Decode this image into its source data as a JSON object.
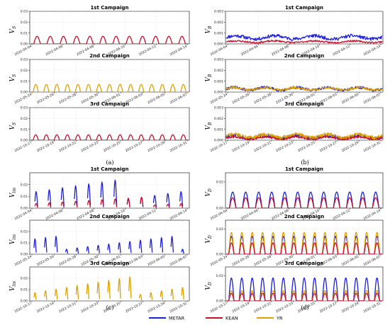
{
  "legend": [
    {
      "name": "METAR",
      "color": "#1f1fd6"
    },
    {
      "name": "KEAN",
      "color": "#c8102e"
    },
    {
      "name": "YR",
      "color": "#e0a100"
    }
  ],
  "subfigure_labels": [
    "(a)",
    "(b)",
    "(c)",
    "(d)"
  ],
  "chart_data": [
    {
      "group": "(a)",
      "type": "line",
      "title": "1st Campaign",
      "ylabel": "V_S",
      "ylim": [
        0,
        0.03
      ],
      "yticks": [
        "0.00",
        "0.01",
        "0.02",
        "0.03"
      ],
      "xticks": [
        "2022-04-04",
        "2022-04-06",
        "2022-04-08",
        "2022-04-10",
        "2022-04-12",
        "2022-04-14"
      ],
      "series": [
        {
          "name": "KEAN",
          "pattern": "diurnal",
          "days": 12,
          "peak": 0.007
        }
      ]
    },
    {
      "group": "(a)",
      "type": "line",
      "title": "2nd Campaign",
      "ylabel": "V_S",
      "ylim": [
        0,
        0.03
      ],
      "yticks": [
        "0.00",
        "0.01",
        "0.02",
        "0.03"
      ],
      "xticks": [
        "2022-05-24",
        "2022-05-26",
        "2022-05-28",
        "2022-05-30",
        "2022-06-01",
        "2022-06-03",
        "2022-06-05",
        "2022-06-07"
      ],
      "series": [
        {
          "name": "YR",
          "pattern": "diurnal",
          "days": 15,
          "peak": 0.007
        }
      ]
    },
    {
      "group": "(a)",
      "type": "line",
      "title": "3rd Campaign",
      "ylabel": "V_S",
      "ylim": [
        0,
        0.03
      ],
      "yticks": [
        "0.00",
        "0.01",
        "0.02",
        "0.03"
      ],
      "xticks": [
        "2022-10-17",
        "2022-10-19",
        "2022-10-21",
        "2022-10-23",
        "2022-10-25",
        "2022-10-27",
        "2022-10-29",
        "2022-10-31"
      ],
      "series": [
        {
          "name": "KEAN",
          "pattern": "diurnal",
          "days": 15,
          "peak": 0.005
        }
      ]
    },
    {
      "group": "(b)",
      "type": "line",
      "title": "1st Campaign",
      "ylabel": "V_B",
      "ylim": [
        0,
        0.003
      ],
      "yticks": [
        "0.000",
        "0.001",
        "0.002",
        "0.003"
      ],
      "xticks": [
        "2022-04-04",
        "2022-04-06",
        "2022-04-08",
        "2022-04-10",
        "2022-04-12",
        "2022-04-14"
      ],
      "series": [
        {
          "name": "METAR",
          "pattern": "noisy",
          "days": 12,
          "level": 0.0006,
          "amp": 0.0003,
          "seed": 11
        },
        {
          "name": "KEAN",
          "pattern": "noisy",
          "days": 12,
          "level": 0.0002,
          "amp": 0.00015,
          "seed": 23
        }
      ]
    },
    {
      "group": "(b)",
      "type": "line",
      "title": "2nd Campaign",
      "ylabel": "V_B",
      "ylim": [
        0,
        0.003
      ],
      "yticks": [
        "0.000",
        "0.001",
        "0.002",
        "0.003"
      ],
      "xticks": [
        "2022-05-24",
        "2022-05-26",
        "2022-05-28",
        "2022-05-30",
        "2022-06-01",
        "2022-06-03",
        "2022-06-05",
        "2022-06-07"
      ],
      "series": [
        {
          "name": "METAR",
          "pattern": "noisy",
          "days": 15,
          "level": 0.0003,
          "amp": 0.00025,
          "seed": 31
        },
        {
          "name": "YR",
          "pattern": "noisy",
          "days": 15,
          "level": 0.0003,
          "amp": 0.0002,
          "seed": 41
        }
      ]
    },
    {
      "group": "(b)",
      "type": "line",
      "title": "3rd Campaign",
      "ylabel": "V_B",
      "ylim": [
        0,
        0.003
      ],
      "yticks": [
        "0.000",
        "0.001",
        "0.002",
        "0.003"
      ],
      "xticks": [
        "2022-10-17",
        "2022-10-19",
        "2022-10-21",
        "2022-10-23",
        "2022-10-25",
        "2022-10-27",
        "2022-10-29",
        "2022-10-31"
      ],
      "series": [
        {
          "name": "METAR",
          "pattern": "noisy",
          "days": 15,
          "level": 0.0003,
          "amp": 0.0003,
          "seed": 51
        },
        {
          "name": "KEAN",
          "pattern": "noisy",
          "days": 15,
          "level": 0.0002,
          "amp": 0.0002,
          "seed": 61
        },
        {
          "name": "YR",
          "pattern": "noisy",
          "days": 15,
          "level": 0.0004,
          "amp": 0.0003,
          "seed": 71
        }
      ]
    },
    {
      "group": "(c)",
      "type": "line",
      "title": "1st Campaign",
      "ylabel": "V_lm",
      "ylim": [
        0,
        0.03
      ],
      "yticks": [
        "0.00",
        "0.01",
        "0.02"
      ],
      "xticks": [
        "2022-04-04",
        "2022-04-06",
        "2022-04-08",
        "2022-04-10",
        "2022-04-12",
        "2022-04-14"
      ],
      "series": [
        {
          "name": "METAR",
          "pattern": "spikes",
          "days": 12,
          "peak": 0.02,
          "seed": 7
        },
        {
          "name": "KEAN",
          "pattern": "spikes",
          "days": 12,
          "peak": 0.008,
          "seed": 9
        }
      ]
    },
    {
      "group": "(c)",
      "type": "line",
      "title": "2nd Campaign",
      "ylabel": "V_lm",
      "ylim": [
        0,
        0.03
      ],
      "yticks": [
        "0.00",
        "0.01",
        "0.02"
      ],
      "xticks": [
        "2022-05-24",
        "2022-05-26",
        "2022-05-28",
        "2022-05-30",
        "2022-06-01",
        "2022-06-03",
        "2022-06-05",
        "2022-06-07"
      ],
      "series": [
        {
          "name": "METAR",
          "pattern": "spikes",
          "days": 15,
          "peak": 0.014,
          "seed": 13
        },
        {
          "name": "YR",
          "pattern": "spikes",
          "days": 15,
          "peak": 0.018,
          "seed": 17
        }
      ]
    },
    {
      "group": "(c)",
      "type": "line",
      "title": "3rd Campaign",
      "ylabel": "V_lm",
      "ylim": [
        0,
        0.03
      ],
      "yticks": [
        "0.00",
        "0.01",
        "0.02"
      ],
      "xticks": [
        "2022-10-17",
        "2022-10-19",
        "2022-10-21",
        "2022-10-23",
        "2022-10-25",
        "2022-10-27",
        "2022-10-29",
        "2022-10-31"
      ],
      "series": [
        {
          "name": "METAR",
          "pattern": "spikes",
          "days": 15,
          "peak": 0.012,
          "seed": 19
        },
        {
          "name": "KEAN",
          "pattern": "spikes",
          "days": 15,
          "peak": 0.01,
          "seed": 21
        },
        {
          "name": "YR",
          "pattern": "spikes",
          "days": 15,
          "peak": 0.019,
          "seed": 27
        }
      ]
    },
    {
      "group": "(d)",
      "type": "line",
      "title": "1st Campaign",
      "ylabel": "V_D",
      "ylim": [
        0,
        0.027
      ],
      "yticks": [
        "0.00",
        "0.02"
      ],
      "xticks": [
        "2022-04-04",
        "2022-04-06",
        "2022-04-08",
        "2022-04-10",
        "2022-04-12",
        "2022-04-14"
      ],
      "series": [
        {
          "name": "METAR",
          "pattern": "diurnal-var",
          "days": 12,
          "peak": 0.014,
          "seed": 33
        },
        {
          "name": "KEAN",
          "pattern": "diurnal",
          "days": 12,
          "peak": 0.008
        }
      ]
    },
    {
      "group": "(d)",
      "type": "line",
      "title": "2nd Campaign",
      "ylabel": "V_D",
      "ylim": [
        0,
        0.027
      ],
      "yticks": [
        "0.00",
        "0.02"
      ],
      "xticks": [
        "2022-05-24",
        "2022-05-26",
        "2022-05-28",
        "2022-05-30",
        "2022-06-01",
        "2022-06-03",
        "2022-06-05",
        "2022-06-07"
      ],
      "series": [
        {
          "name": "METAR",
          "pattern": "diurnal-var",
          "days": 15,
          "peak": 0.014,
          "seed": 37
        },
        {
          "name": "YR",
          "pattern": "diurnal-var",
          "days": 15,
          "peak": 0.016,
          "seed": 39
        },
        {
          "name": "KEAN",
          "pattern": "diurnal",
          "days": 15,
          "peak": 0.009
        }
      ]
    },
    {
      "group": "(d)",
      "type": "line",
      "title": "3rd Campaign",
      "ylabel": "V_D",
      "ylim": [
        0,
        0.027
      ],
      "yticks": [
        "0.00",
        "0.02"
      ],
      "xticks": [
        "2022-10-17",
        "2022-10-19",
        "2022-10-21",
        "2022-10-23",
        "2022-10-25",
        "2022-10-27",
        "2022-10-29",
        "2022-10-31"
      ],
      "series": [
        {
          "name": "METAR",
          "pattern": "diurnal-var",
          "days": 15,
          "peak": 0.015,
          "seed": 43
        },
        {
          "name": "YR",
          "pattern": "diurnal-var",
          "days": 15,
          "peak": 0.018,
          "seed": 47
        },
        {
          "name": "KEAN",
          "pattern": "diurnal",
          "days": 15,
          "peak": 0.006
        }
      ]
    }
  ]
}
